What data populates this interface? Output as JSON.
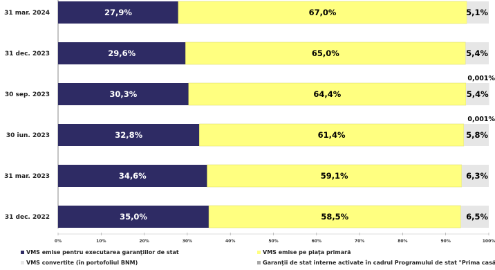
{
  "chart_data": {
    "type": "bar",
    "orientation": "horizontal",
    "stacked": true,
    "categories": [
      "31 mar. 2024",
      "31 dec. 2023",
      "30 sep. 2023",
      "30 iun. 2023",
      "31 mar. 2023",
      "31 dec. 2022"
    ],
    "series": [
      {
        "name": "VMS emise pentru executarea garanţiilor de stat",
        "color": "#2e2b64",
        "values": [
          27.9,
          29.6,
          30.3,
          32.8,
          34.6,
          35.0
        ],
        "labels": [
          "27,9%",
          "29,6%",
          "30,3%",
          "32,8%",
          "34,6%",
          "35,0%"
        ]
      },
      {
        "name": "VMS emise pe piaţa primară",
        "color": "#ffff80",
        "values": [
          67.0,
          65.0,
          64.4,
          61.4,
          59.1,
          58.5
        ],
        "labels": [
          "67,0%",
          "65,0%",
          "64,4%",
          "61,4%",
          "59,1%",
          "58,5%"
        ]
      },
      {
        "name": "VMS convertite (în portofoliul BNM)",
        "color": "#e6e6e6",
        "values": [
          5.1,
          5.4,
          5.4,
          5.8,
          6.3,
          6.5
        ],
        "labels": [
          "5,1%",
          "5,4%",
          "5,4%",
          "5,8%",
          "6,3%",
          "6,5%"
        ]
      },
      {
        "name": "Garanţii de stat interne activate în cadrul Programului de stat \"Prima casă\"",
        "color": "#a6a6a6",
        "values": [
          0,
          0,
          0.001,
          0.001,
          0,
          0
        ],
        "labels": [
          "",
          "",
          "0,001%",
          "0,001%",
          "",
          ""
        ]
      }
    ],
    "xlim": [
      0,
      100
    ],
    "xticks": [
      "0%",
      "10%",
      "20%",
      "30%",
      "40%",
      "50%",
      "60%",
      "70%",
      "80%",
      "90%",
      "100%"
    ],
    "legend_position": "bottom"
  }
}
